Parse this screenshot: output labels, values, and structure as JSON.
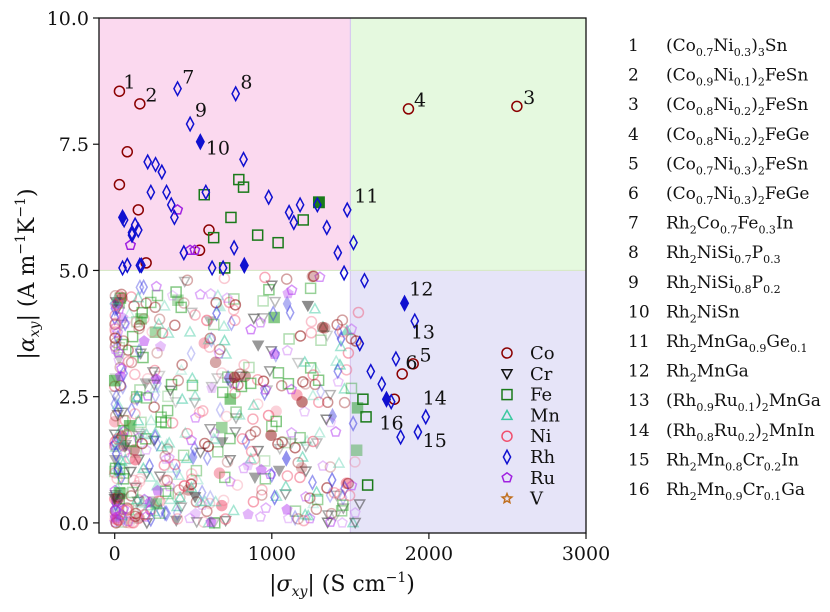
{
  "chart_data": {
    "type": "scatter",
    "xlabel_main": "|σ",
    "xlabel_sub": "xy",
    "xlabel_unit": "| (S cm",
    "xlabel_exp": "−1",
    "xlabel_end": ")",
    "ylabel_main": "|α",
    "ylabel_sub": "xy",
    "ylabel_unit": "| (A m",
    "ylabel_exp1": "−1",
    "ylabel_mid": "K",
    "ylabel_exp2": "−1",
    "ylabel_end": ")",
    "xlim": [
      -100,
      3000
    ],
    "ylim": [
      -0.2,
      10.0
    ],
    "xticks": [
      0,
      1000,
      2000,
      3000
    ],
    "xtick_labels": [
      "0",
      "1000",
      "2000",
      "3000"
    ],
    "yticks": [
      0.0,
      2.5,
      5.0,
      7.5,
      10.0
    ],
    "ytick_labels": [
      "0.0",
      "2.5",
      "5.0",
      "7.5",
      "10.0"
    ],
    "regions": [
      {
        "name": "high-alpha-low-sigma",
        "x": [
          -100,
          1500
        ],
        "y": [
          5.0,
          10.0
        ],
        "color": "#fbd9ef"
      },
      {
        "name": "high-alpha-high-sigma",
        "x": [
          1500,
          3000
        ],
        "y": [
          5.0,
          10.0
        ],
        "color": "#e5f9df"
      },
      {
        "name": "low-alpha-high-sigma",
        "x": [
          1500,
          3000
        ],
        "y": [
          -0.2,
          5.0
        ],
        "color": "#e6e4f8"
      }
    ],
    "legend_position": "lower-right",
    "legend": [
      {
        "label": "Co",
        "marker": "circle",
        "color": "#8b0000"
      },
      {
        "label": "Cr",
        "marker": "triangle-down",
        "color": "#111111"
      },
      {
        "label": "Fe",
        "marker": "square",
        "color": "#1a7a1a"
      },
      {
        "label": "Mn",
        "marker": "triangle-up",
        "color": "#3cc8a0"
      },
      {
        "label": "Ni",
        "marker": "circle",
        "color": "#f0506e"
      },
      {
        "label": "Rh",
        "marker": "diamond",
        "color": "#1010d0"
      },
      {
        "label": "Ru",
        "marker": "pentagon",
        "color": "#a020e0"
      },
      {
        "label": "V",
        "marker": "star",
        "color": "#c07020"
      }
    ],
    "series": [
      {
        "name": "Co",
        "marker": "circle",
        "color": "#8b0000",
        "x": [
          30,
          160,
          30,
          80,
          150,
          200,
          540,
          600,
          1870,
          2560,
          1830,
          1900,
          1780
        ],
        "y": [
          8.55,
          8.3,
          6.7,
          7.35,
          6.2,
          5.15,
          5.4,
          5.8,
          8.2,
          8.25,
          2.95,
          3.15,
          2.45
        ]
      },
      {
        "name": "Fe",
        "marker": "square",
        "color": "#1a7a1a",
        "x": [
          570,
          630,
          700,
          740,
          790,
          820,
          910,
          1040,
          1200,
          1580,
          1600,
          1610
        ],
        "y": [
          6.5,
          5.65,
          5.05,
          6.05,
          6.8,
          6.65,
          5.7,
          5.55,
          6.0,
          2.45,
          2.1,
          0.75
        ]
      },
      {
        "name": "Fe-filled",
        "marker": "square-filled",
        "color": "#1a7a1a",
        "x": [
          1300
        ],
        "y": [
          6.35
        ]
      },
      {
        "name": "Ru",
        "marker": "pentagon",
        "color": "#a020e0",
        "x": [
          100,
          400,
          480,
          510
        ],
        "y": [
          5.5,
          6.2,
          5.4,
          5.4
        ]
      },
      {
        "name": "Rh",
        "marker": "diamond",
        "color": "#1010d0",
        "x": [
          400,
          770,
          480,
          60,
          80,
          130,
          150,
          170,
          210,
          230,
          260,
          300,
          330,
          360,
          380,
          440,
          580,
          620,
          690,
          760,
          820,
          980,
          1110,
          1140,
          1180,
          1290,
          1350,
          1420,
          1460,
          1480,
          1520,
          1590,
          1560,
          1630,
          1700,
          1760,
          1790,
          1820,
          1910,
          1930,
          1980,
          110,
          160,
          110,
          50
        ],
        "y": [
          8.6,
          8.5,
          7.9,
          6.0,
          5.1,
          5.9,
          5.8,
          5.1,
          7.15,
          6.55,
          7.1,
          6.95,
          6.55,
          6.3,
          6.05,
          5.35,
          6.55,
          5.05,
          5.05,
          5.45,
          7.2,
          6.45,
          6.15,
          5.95,
          6.3,
          6.3,
          5.85,
          5.35,
          4.95,
          6.2,
          5.55,
          4.8,
          3.55,
          3.0,
          2.75,
          2.4,
          3.25,
          1.7,
          4.0,
          1.8,
          2.1,
          5.75,
          5.1,
          5.7,
          5.05
        ]
      },
      {
        "name": "Rh-filled",
        "marker": "diamond-filled",
        "color": "#1010d0",
        "x": [
          545,
          50,
          825,
          1845,
          1730
        ],
        "y": [
          7.55,
          6.05,
          5.1,
          4.35,
          2.45
        ]
      }
    ],
    "faint_series": [
      {
        "name": "Co-faint",
        "marker": "circle",
        "color": "#8b0000"
      },
      {
        "name": "Fe-faint",
        "marker": "square",
        "color": "#1a9a1a"
      },
      {
        "name": "Mn-faint",
        "marker": "triangle-up",
        "color": "#3cc8a0"
      },
      {
        "name": "Ni-faint",
        "marker": "circle",
        "color": "#f0506e"
      },
      {
        "name": "Rh-faint",
        "marker": "diamond",
        "color": "#3030e0"
      },
      {
        "name": "Ru-faint",
        "marker": "pentagon",
        "color": "#b030f0"
      },
      {
        "name": "Cr-faint",
        "marker": "triangle-down",
        "color": "#333333"
      }
    ],
    "annotations": [
      {
        "label": "1",
        "x": 55,
        "y": 8.6
      },
      {
        "label": "2",
        "x": 195,
        "y": 8.35
      },
      {
        "label": "3",
        "x": 2600,
        "y": 8.3
      },
      {
        "label": "4",
        "x": 1905,
        "y": 8.25
      },
      {
        "label": "5",
        "x": 1940,
        "y": 3.2
      },
      {
        "label": "6",
        "x": 1850,
        "y": 3.05
      },
      {
        "label": "7",
        "x": 430,
        "y": 8.7
      },
      {
        "label": "8",
        "x": 800,
        "y": 8.6
      },
      {
        "label": "9",
        "x": 510,
        "y": 8.05
      },
      {
        "label": "10",
        "x": 580,
        "y": 7.3
      },
      {
        "label": "11",
        "x": 1525,
        "y": 6.35
      },
      {
        "label": "12",
        "x": 1875,
        "y": 4.5
      },
      {
        "label": "13",
        "x": 1885,
        "y": 3.65
      },
      {
        "label": "14",
        "x": 1960,
        "y": 2.35
      },
      {
        "label": "15",
        "x": 1960,
        "y": 1.5
      },
      {
        "label": "16",
        "x": 1685,
        "y": 1.85
      }
    ]
  },
  "compound_list": [
    {
      "num": "1",
      "parts": [
        [
          "(Co",
          ""
        ],
        [
          "0.7",
          "sub"
        ],
        [
          "Ni",
          ""
        ],
        [
          "0.3",
          "sub"
        ],
        [
          ")",
          ""
        ],
        [
          "3",
          "sub"
        ],
        [
          "Sn",
          ""
        ]
      ]
    },
    {
      "num": "2",
      "parts": [
        [
          "(Co",
          ""
        ],
        [
          "0.9",
          "sub"
        ],
        [
          "Ni",
          ""
        ],
        [
          "0.1",
          "sub"
        ],
        [
          ")",
          ""
        ],
        [
          "2",
          "sub"
        ],
        [
          "FeSn",
          ""
        ]
      ]
    },
    {
      "num": "3",
      "parts": [
        [
          "(Co",
          ""
        ],
        [
          "0.8",
          "sub"
        ],
        [
          "Ni",
          ""
        ],
        [
          "0.2",
          "sub"
        ],
        [
          ")",
          ""
        ],
        [
          "2",
          "sub"
        ],
        [
          "FeSn",
          ""
        ]
      ]
    },
    {
      "num": "4",
      "parts": [
        [
          "(Co",
          ""
        ],
        [
          "0.8",
          "sub"
        ],
        [
          "Ni",
          ""
        ],
        [
          "0.2",
          "sub"
        ],
        [
          ")",
          ""
        ],
        [
          "2",
          "sub"
        ],
        [
          "FeGe",
          ""
        ]
      ]
    },
    {
      "num": "5",
      "parts": [
        [
          "(Co",
          ""
        ],
        [
          "0.7",
          "sub"
        ],
        [
          "Ni",
          ""
        ],
        [
          "0.3",
          "sub"
        ],
        [
          ")",
          ""
        ],
        [
          "2",
          "sub"
        ],
        [
          "FeSn",
          ""
        ]
      ]
    },
    {
      "num": "6",
      "parts": [
        [
          "(Co",
          ""
        ],
        [
          "0.7",
          "sub"
        ],
        [
          "Ni",
          ""
        ],
        [
          "0.3",
          "sub"
        ],
        [
          ")",
          ""
        ],
        [
          "2",
          "sub"
        ],
        [
          "FeGe",
          ""
        ]
      ]
    },
    {
      "num": "7",
      "parts": [
        [
          "Rh",
          ""
        ],
        [
          "2",
          "sub"
        ],
        [
          "Co",
          ""
        ],
        [
          "0.7",
          "sub"
        ],
        [
          "Fe",
          ""
        ],
        [
          "0.3",
          "sub"
        ],
        [
          "In",
          ""
        ]
      ]
    },
    {
      "num": "8",
      "parts": [
        [
          "Rh",
          ""
        ],
        [
          "2",
          "sub"
        ],
        [
          "NiSi",
          ""
        ],
        [
          "0.7",
          "sub"
        ],
        [
          "P",
          ""
        ],
        [
          "0.3",
          "sub"
        ]
      ]
    },
    {
      "num": "9",
      "parts": [
        [
          "Rh",
          ""
        ],
        [
          "2",
          "sub"
        ],
        [
          "NiSi",
          ""
        ],
        [
          "0.8",
          "sub"
        ],
        [
          "P",
          ""
        ],
        [
          "0.2",
          "sub"
        ]
      ]
    },
    {
      "num": "10",
      "parts": [
        [
          "Rh",
          ""
        ],
        [
          "2",
          "sub"
        ],
        [
          "NiSn",
          ""
        ]
      ]
    },
    {
      "num": "11",
      "parts": [
        [
          "Rh",
          ""
        ],
        [
          "2",
          "sub"
        ],
        [
          "MnGa",
          ""
        ],
        [
          "0.9",
          "sub"
        ],
        [
          "Ge",
          ""
        ],
        [
          "0.1",
          "sub"
        ]
      ]
    },
    {
      "num": "12",
      "parts": [
        [
          "Rh",
          ""
        ],
        [
          "2",
          "sub"
        ],
        [
          "MnGa",
          ""
        ]
      ]
    },
    {
      "num": "13",
      "parts": [
        [
          "(Rh",
          ""
        ],
        [
          "0.9",
          "sub"
        ],
        [
          "Ru",
          ""
        ],
        [
          "0.1",
          "sub"
        ],
        [
          ")",
          ""
        ],
        [
          "2",
          "sub"
        ],
        [
          "MnGa",
          ""
        ]
      ]
    },
    {
      "num": "14",
      "parts": [
        [
          "(Rh",
          ""
        ],
        [
          "0.8",
          "sub"
        ],
        [
          "Ru",
          ""
        ],
        [
          "0.2",
          "sub"
        ],
        [
          ")",
          ""
        ],
        [
          "2",
          "sub"
        ],
        [
          "MnIn",
          ""
        ]
      ]
    },
    {
      "num": "15",
      "parts": [
        [
          "Rh",
          ""
        ],
        [
          "2",
          "sub"
        ],
        [
          "Mn",
          ""
        ],
        [
          "0.8",
          "sub"
        ],
        [
          "Cr",
          ""
        ],
        [
          "0.2",
          "sub"
        ],
        [
          "In",
          ""
        ]
      ]
    },
    {
      "num": "16",
      "parts": [
        [
          "Rh",
          ""
        ],
        [
          "2",
          "sub"
        ],
        [
          "Mn",
          ""
        ],
        [
          "0.9",
          "sub"
        ],
        [
          "Cr",
          ""
        ],
        [
          "0.1",
          "sub"
        ],
        [
          "Ga",
          ""
        ]
      ]
    }
  ]
}
